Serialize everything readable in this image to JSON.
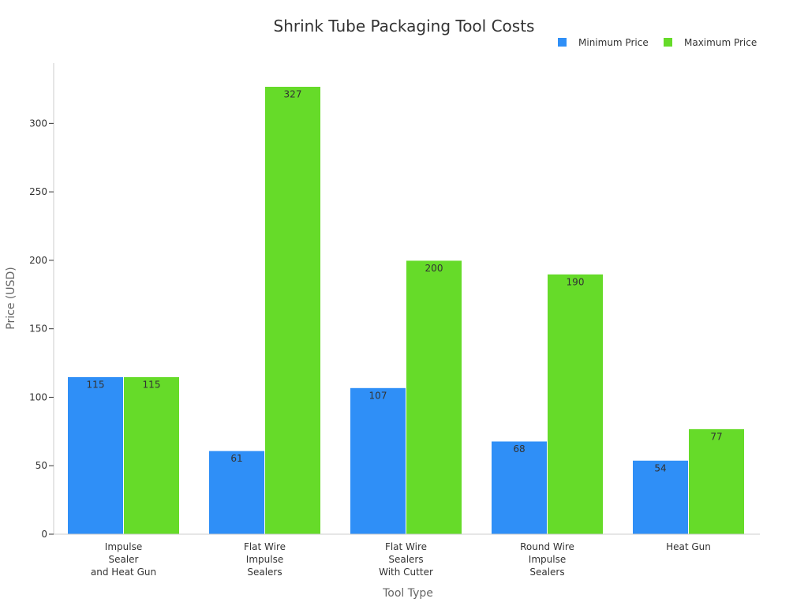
{
  "chart_data": {
    "type": "bar",
    "title": "Shrink Tube Packaging Tool Costs",
    "xlabel": "Tool Type",
    "ylabel": "Price (USD)",
    "categories": [
      [
        "Impulse",
        "Sealer",
        "and Heat Gun"
      ],
      [
        "Flat Wire",
        "Impulse",
        "Sealers"
      ],
      [
        "Flat Wire",
        "Sealers",
        "With Cutter"
      ],
      [
        "Round Wire",
        "Impulse",
        "Sealers"
      ],
      [
        "Heat Gun"
      ]
    ],
    "series": [
      {
        "name": "Minimum Price",
        "color": "#2f8ff7",
        "values": [
          115,
          61,
          107,
          68,
          54
        ]
      },
      {
        "name": "Maximum Price",
        "color": "#66db29",
        "values": [
          115,
          327,
          200,
          190,
          77
        ]
      }
    ],
    "ylim": [
      0,
      344
    ],
    "yticks": [
      0,
      50,
      100,
      150,
      200,
      250,
      300
    ],
    "grid": false,
    "legend_position": "top-right"
  }
}
